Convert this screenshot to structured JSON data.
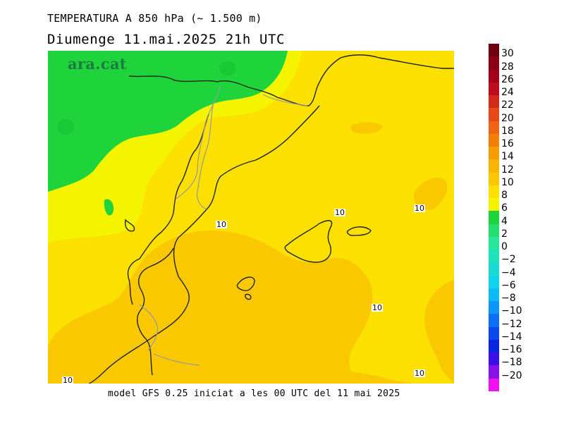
{
  "header": {
    "title": "TEMPERATURA A 850 hPa (~ 1.500 m)",
    "subtitle": "Diumenge  11.mai.2025 21h UTC"
  },
  "brand": {
    "logo_text": "ara.cat",
    "color": "#1e7a45"
  },
  "footer": {
    "text": "model GFS 0.25 iniciat a les 00 UTC del 11 mai 2025"
  },
  "map": {
    "contour_value": "10",
    "region_colors": {
      "band_4_6": "#1fd43a",
      "band_6_8": "#f4f400",
      "band_8_10": "#fbe000",
      "band_10_12": "#f9c800"
    }
  },
  "legend": {
    "bands": [
      {
        "from": 30,
        "to": 32,
        "color": "#6e0010"
      },
      {
        "from": 28,
        "to": 30,
        "color": "#8a0014"
      },
      {
        "from": 26,
        "to": 28,
        "color": "#a4001a"
      },
      {
        "from": 24,
        "to": 26,
        "color": "#be0c1c"
      },
      {
        "from": 22,
        "to": 24,
        "color": "#d42a1c"
      },
      {
        "from": 20,
        "to": 22,
        "color": "#e6481a"
      },
      {
        "from": 18,
        "to": 20,
        "color": "#ee6414"
      },
      {
        "from": 16,
        "to": 18,
        "color": "#f28008"
      },
      {
        "from": 14,
        "to": 16,
        "color": "#f69c00"
      },
      {
        "from": 12,
        "to": 14,
        "color": "#f8b400"
      },
      {
        "from": 10,
        "to": 12,
        "color": "#f9c800"
      },
      {
        "from": 8,
        "to": 10,
        "color": "#fbe000"
      },
      {
        "from": 6,
        "to": 8,
        "color": "#f4f400"
      },
      {
        "from": 4,
        "to": 6,
        "color": "#1fd43a"
      },
      {
        "from": 2,
        "to": 4,
        "color": "#22e070"
      },
      {
        "from": 0,
        "to": 2,
        "color": "#26e898"
      },
      {
        "from": -2,
        "to": 0,
        "color": "#1ee2b8"
      },
      {
        "from": -4,
        "to": -2,
        "color": "#18dcd2"
      },
      {
        "from": -6,
        "to": -4,
        "color": "#10d4ee"
      },
      {
        "from": -8,
        "to": -6,
        "color": "#0cbaf6"
      },
      {
        "from": -10,
        "to": -8,
        "color": "#0c96f6"
      },
      {
        "from": -12,
        "to": -10,
        "color": "#0c70f6"
      },
      {
        "from": -14,
        "to": -12,
        "color": "#0a48ee"
      },
      {
        "from": -16,
        "to": -14,
        "color": "#0a24e4"
      },
      {
        "from": -18,
        "to": -16,
        "color": "#3a10e6"
      },
      {
        "from": -20,
        "to": -18,
        "color": "#8810ea"
      },
      {
        "from": -22,
        "to": -20,
        "color": "#f010f0"
      }
    ],
    "tick_labels": [
      "30",
      "28",
      "26",
      "24",
      "22",
      "20",
      "18",
      "16",
      "14",
      "12",
      "10",
      "8",
      "6",
      "4",
      "2",
      "0",
      "-2",
      "-4",
      "-6",
      "-8",
      "-10",
      "-12",
      "-14",
      "-16",
      "-18",
      "-20"
    ]
  }
}
